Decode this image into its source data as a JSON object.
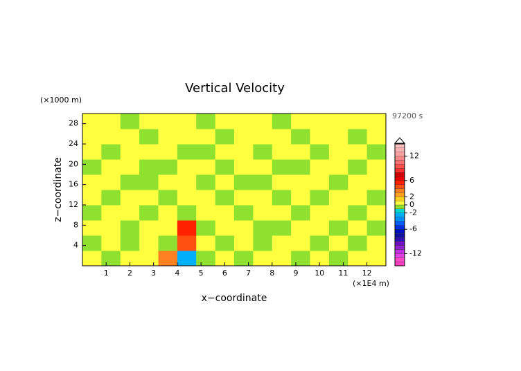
{
  "chart_data": {
    "type": "contour",
    "title": "Vertical Velocity",
    "y_unit": "(×1000 m)",
    "x_unit": "(×1E4 m)",
    "time_label": "97200 s",
    "xlabel": "x−coordinate",
    "ylabel": "z−coordinate",
    "xlim": [
      0,
      12.8
    ],
    "ylim": [
      0,
      30
    ],
    "xticks": [
      1,
      2,
      3,
      4,
      5,
      6,
      7,
      8,
      9,
      10,
      11,
      12
    ],
    "yticks": [
      4,
      8,
      12,
      16,
      20,
      24,
      28
    ],
    "values": [
      [
        0.5,
        -0.5,
        0.5,
        0.5,
        3,
        -3,
        -0.5,
        0.5,
        -0.5,
        0.5,
        0.5,
        -0.5,
        0.5,
        -0.5,
        0.5,
        0.5
      ],
      [
        -0.5,
        0.5,
        -0.5,
        0.5,
        -0.5,
        4,
        0.5,
        -0.5,
        0.5,
        -0.5,
        0.5,
        0.5,
        -0.5,
        0.5,
        -0.5,
        0.5
      ],
      [
        0.5,
        0.5,
        -0.5,
        0.5,
        0.5,
        5,
        -0.5,
        0.5,
        0.5,
        -0.5,
        -0.5,
        0.5,
        0.5,
        -0.5,
        0.5,
        -0.5
      ],
      [
        -0.5,
        0.5,
        0.5,
        -0.5,
        0.5,
        -0.5,
        0.5,
        0.5,
        -0.5,
        0.5,
        0.5,
        -0.5,
        0.5,
        0.5,
        -0.5,
        0.5
      ],
      [
        0.5,
        -0.5,
        0.5,
        0.5,
        -0.5,
        0.5,
        0.5,
        -0.5,
        0.5,
        0.5,
        -0.5,
        0.5,
        -0.5,
        0.5,
        0.5,
        -0.5
      ],
      [
        0.5,
        0.5,
        -0.5,
        -0.5,
        0.5,
        0.5,
        -0.5,
        0.5,
        -0.5,
        -0.5,
        0.5,
        0.5,
        0.5,
        -0.5,
        0.5,
        0.5
      ],
      [
        -0.5,
        0.5,
        0.5,
        -0.5,
        -0.5,
        0.5,
        0.5,
        -0.5,
        0.5,
        0.5,
        -0.5,
        -0.5,
        0.5,
        0.5,
        -0.5,
        0.5
      ],
      [
        0.5,
        -0.5,
        0.5,
        0.5,
        0.5,
        -0.5,
        -0.5,
        0.5,
        0.5,
        -0.5,
        0.5,
        0.5,
        -0.5,
        0.5,
        0.5,
        -0.5
      ],
      [
        0.5,
        0.5,
        0.5,
        -0.5,
        0.5,
        0.5,
        0.5,
        -0.5,
        0.5,
        0.5,
        0.5,
        -0.5,
        0.5,
        0.5,
        -0.5,
        0.5
      ],
      [
        0.5,
        0.5,
        -0.5,
        0.5,
        0.5,
        0.5,
        -0.5,
        0.5,
        0.5,
        0.5,
        -0.5,
        0.5,
        0.5,
        0.5,
        0.5,
        0.5
      ]
    ],
    "colorbar": {
      "lim": [
        -15,
        15
      ],
      "ticks": [
        12,
        6,
        2,
        0,
        -2,
        -6,
        -12
      ],
      "levels": [
        -15,
        -14,
        -13,
        -12,
        -11,
        -10,
        -9,
        -8,
        -7,
        -6,
        -5,
        -4,
        -3,
        -2,
        -1,
        0,
        1,
        2,
        3,
        4,
        5,
        6,
        7,
        8,
        9,
        10,
        11,
        12,
        13,
        14,
        15
      ],
      "colors": [
        "#ff3fbf",
        "#ff48c8",
        "#e040e0",
        "#c030e0",
        "#9020d0",
        "#7010c0",
        "#3010b0",
        "#1010a0",
        "#0010c0",
        "#0030e0",
        "#0060ff",
        "#0090ff",
        "#00b0ff",
        "#00d8d0",
        "#90e030",
        "#ffff40",
        "#ffd020",
        "#ffa020",
        "#ff8020",
        "#ff5010",
        "#ff2000",
        "#e80000",
        "#d00000",
        "#ff3030",
        "#ff5050",
        "#ff7070",
        "#ff8888",
        "#ffa0a0",
        "#ffb0b0",
        "#ffc0c0"
      ]
    }
  }
}
